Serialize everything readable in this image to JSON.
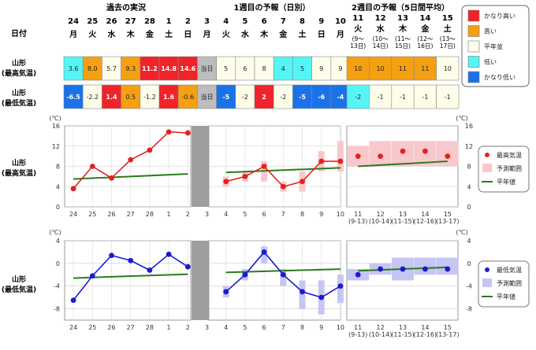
{
  "header": {
    "date_label": "日付",
    "section_past": "過去の実況",
    "section_week1": "1週目の予報（日別）",
    "section_week2": "2週目の予報（5日間平均）",
    "days": [
      {
        "d": "24",
        "w": "月"
      },
      {
        "d": "25",
        "w": "火"
      },
      {
        "d": "26",
        "w": "水"
      },
      {
        "d": "27",
        "w": "木"
      },
      {
        "d": "28",
        "w": "金"
      },
      {
        "d": "1",
        "w": "土"
      },
      {
        "d": "2",
        "w": "日"
      },
      {
        "d": "3",
        "w": "月"
      },
      {
        "d": "4",
        "w": "火"
      },
      {
        "d": "5",
        "w": "水"
      },
      {
        "d": "6",
        "w": "木"
      },
      {
        "d": "7",
        "w": "金"
      },
      {
        "d": "8",
        "w": "土"
      },
      {
        "d": "9",
        "w": "日"
      },
      {
        "d": "10",
        "w": "月"
      }
    ],
    "periods": [
      {
        "d": "11",
        "w": "火",
        "r1": "(9〜",
        "r2": "13日)"
      },
      {
        "d": "12",
        "w": "水",
        "r1": "(10〜",
        "r2": "14日)"
      },
      {
        "d": "13",
        "w": "木",
        "r1": "(11〜",
        "r2": "15日)"
      },
      {
        "d": "14",
        "w": "金",
        "r1": "(12〜",
        "r2": "16日)"
      },
      {
        "d": "15",
        "w": "土",
        "r1": "(13〜",
        "r2": "17日)"
      }
    ]
  },
  "table": {
    "max_label": [
      "山形",
      "(最高気温)"
    ],
    "min_label": [
      "山形",
      "(最低気温)"
    ],
    "today_text": "当日",
    "max_daily": [
      {
        "v": "3.6",
        "c": "low"
      },
      {
        "v": "8.0",
        "c": "high"
      },
      {
        "v": "5.7",
        "c": "normal"
      },
      {
        "v": "9.3",
        "c": "high"
      },
      {
        "v": "11.2",
        "c": "vhigh"
      },
      {
        "v": "14.8",
        "c": "vhigh"
      },
      {
        "v": "14.6",
        "c": "vhigh"
      },
      {
        "v": "当日",
        "c": "today"
      },
      {
        "v": "5",
        "c": "normal"
      },
      {
        "v": "6",
        "c": "normal"
      },
      {
        "v": "8",
        "c": "normal"
      },
      {
        "v": "4",
        "c": "low"
      },
      {
        "v": "5",
        "c": "low"
      },
      {
        "v": "9",
        "c": "normal"
      },
      {
        "v": "9",
        "c": "normal"
      }
    ],
    "max_week2": [
      {
        "v": "10",
        "c": "high"
      },
      {
        "v": "10",
        "c": "high"
      },
      {
        "v": "11",
        "c": "high"
      },
      {
        "v": "11",
        "c": "high"
      },
      {
        "v": "10",
        "c": "normal"
      }
    ],
    "min_daily": [
      {
        "v": "-6.5",
        "c": "vlow"
      },
      {
        "v": "-2.2",
        "c": "normal"
      },
      {
        "v": "1.4",
        "c": "vhigh"
      },
      {
        "v": "0.5",
        "c": "high"
      },
      {
        "v": "-1.2",
        "c": "normal"
      },
      {
        "v": "1.6",
        "c": "vhigh"
      },
      {
        "v": "-0.6",
        "c": "high"
      },
      {
        "v": "当日",
        "c": "today"
      },
      {
        "v": "-5",
        "c": "vlow"
      },
      {
        "v": "-2",
        "c": "normal"
      },
      {
        "v": "2",
        "c": "vhigh"
      },
      {
        "v": "-2",
        "c": "normal"
      },
      {
        "v": "-5",
        "c": "vlow"
      },
      {
        "v": "-6",
        "c": "vlow"
      },
      {
        "v": "-4",
        "c": "vlow"
      }
    ],
    "min_week2": [
      {
        "v": "-2",
        "c": "low"
      },
      {
        "v": "-1",
        "c": "normal"
      },
      {
        "v": "-1",
        "c": "normal"
      },
      {
        "v": "-1",
        "c": "normal"
      },
      {
        "v": "-1",
        "c": "normal"
      }
    ]
  },
  "legend_table": {
    "items": [
      {
        "key": "vhigh",
        "label": "かなり高い"
      },
      {
        "key": "high",
        "label": "高い"
      },
      {
        "key": "normal",
        "label": "平年並"
      },
      {
        "key": "low",
        "label": "低い"
      },
      {
        "key": "vlow",
        "label": "かなり低い"
      }
    ]
  },
  "colors": {
    "vhigh": "#f0232a",
    "high": "#f5a011",
    "normal": "#fdfdea",
    "low": "#55f5f5",
    "vlow": "#1a72e8",
    "today": "#bdbdbd",
    "max_line": "#e32222",
    "max_band": "#f9c8cc",
    "min_line": "#1a1ad0",
    "min_band": "#c6c6f4",
    "normal_line": "#2a7a1e"
  },
  "chart_data": [
    {
      "type": "line",
      "title": "",
      "row_label": [
        "山形",
        "(最高気温)"
      ],
      "unit": "(℃)",
      "ylim": [
        0,
        16
      ],
      "yticks": [
        0,
        4,
        8,
        12,
        16
      ],
      "grid": true,
      "categories": [
        "24",
        "25",
        "26",
        "27",
        "28",
        "1",
        "2",
        "3",
        "4",
        "5",
        "6",
        "7",
        "8",
        "9",
        "10"
      ],
      "week2_categories": [
        "11",
        "12",
        "13",
        "14",
        "15"
      ],
      "week2_ranges": [
        "(9-13)",
        "(10-14)",
        "(11-15)",
        "(12-16)",
        "(13-17)"
      ],
      "observed": [
        3.6,
        8.0,
        5.7,
        9.3,
        11.2,
        14.8,
        14.6
      ],
      "normal_observed": [
        5.5,
        6.5
      ],
      "forecast": [
        5,
        6,
        8,
        4,
        5,
        9,
        9
      ],
      "forecast_range": [
        [
          4,
          6
        ],
        [
          5,
          7
        ],
        [
          5,
          9
        ],
        [
          3,
          5
        ],
        [
          3,
          7
        ],
        [
          7,
          11
        ],
        [
          7,
          13
        ]
      ],
      "normal_forecast": [
        6.8,
        7.7
      ],
      "week2": [
        10,
        10,
        11,
        11,
        10
      ],
      "week2_range": [
        [
          8,
          12
        ],
        [
          8,
          13
        ],
        [
          8,
          13
        ],
        [
          8,
          13
        ],
        [
          8,
          13
        ]
      ],
      "normal_week2": [
        8.0,
        9.0
      ],
      "legend": [
        "最高気温",
        "予測範囲",
        "平年値"
      ],
      "legend_position": "right"
    },
    {
      "type": "line",
      "title": "",
      "row_label": [
        "山形",
        "(最低気温)"
      ],
      "unit": "(℃)",
      "ylim": [
        -10,
        4
      ],
      "yticks": [
        -8,
        -4,
        0,
        4
      ],
      "grid": true,
      "categories": [
        "24",
        "25",
        "26",
        "27",
        "28",
        "1",
        "2",
        "3",
        "4",
        "5",
        "6",
        "7",
        "8",
        "9",
        "10"
      ],
      "week2_categories": [
        "11",
        "12",
        "13",
        "14",
        "15"
      ],
      "week2_ranges": [
        "(9-13)",
        "(10-14)",
        "(11-15)",
        "(12-16)",
        "(13-17)"
      ],
      "observed": [
        -6.5,
        -2.2,
        1.4,
        0.5,
        -1.2,
        1.6,
        -0.6
      ],
      "normal_observed": [
        -2.6,
        -1.9
      ],
      "forecast": [
        -5,
        -2,
        2,
        -2,
        -5,
        -6,
        -4
      ],
      "forecast_range": [
        [
          -6,
          -4
        ],
        [
          -3,
          -1
        ],
        [
          0,
          3
        ],
        [
          -4,
          -1
        ],
        [
          -8,
          -3
        ],
        [
          -9,
          -3
        ],
        [
          -7,
          -2
        ]
      ],
      "normal_forecast": [
        -1.6,
        -1.0
      ],
      "week2": [
        -2,
        -1,
        -1,
        -1,
        -1
      ],
      "week2_range": [
        [
          -3,
          -1
        ],
        [
          -2,
          0
        ],
        [
          -3,
          1
        ],
        [
          -2,
          1
        ],
        [
          -2,
          1
        ]
      ],
      "normal_week2": [
        -1.3,
        -0.7
      ],
      "legend": [
        "最低気温",
        "予測範囲",
        "平年値"
      ],
      "legend_position": "right"
    }
  ]
}
